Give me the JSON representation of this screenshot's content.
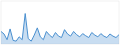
{
  "chart_data": {
    "type": "area",
    "values": [
      3500,
      2800,
      1200,
      4200,
      1000,
      800,
      2000,
      1200,
      8500,
      1500,
      800,
      2500,
      4500,
      2000,
      1200,
      3500,
      2500,
      1800,
      3200,
      2200,
      1800,
      4000,
      2800,
      2200,
      3500,
      2600,
      2000,
      2900,
      2300,
      1800,
      3200,
      2500,
      2000,
      2900,
      2200,
      1800,
      2800,
      2200,
      1800,
      2600
    ],
    "color": "#4a90d0",
    "ylim": [
      0,
      12000
    ],
    "grid": false,
    "tick_labels": false
  }
}
